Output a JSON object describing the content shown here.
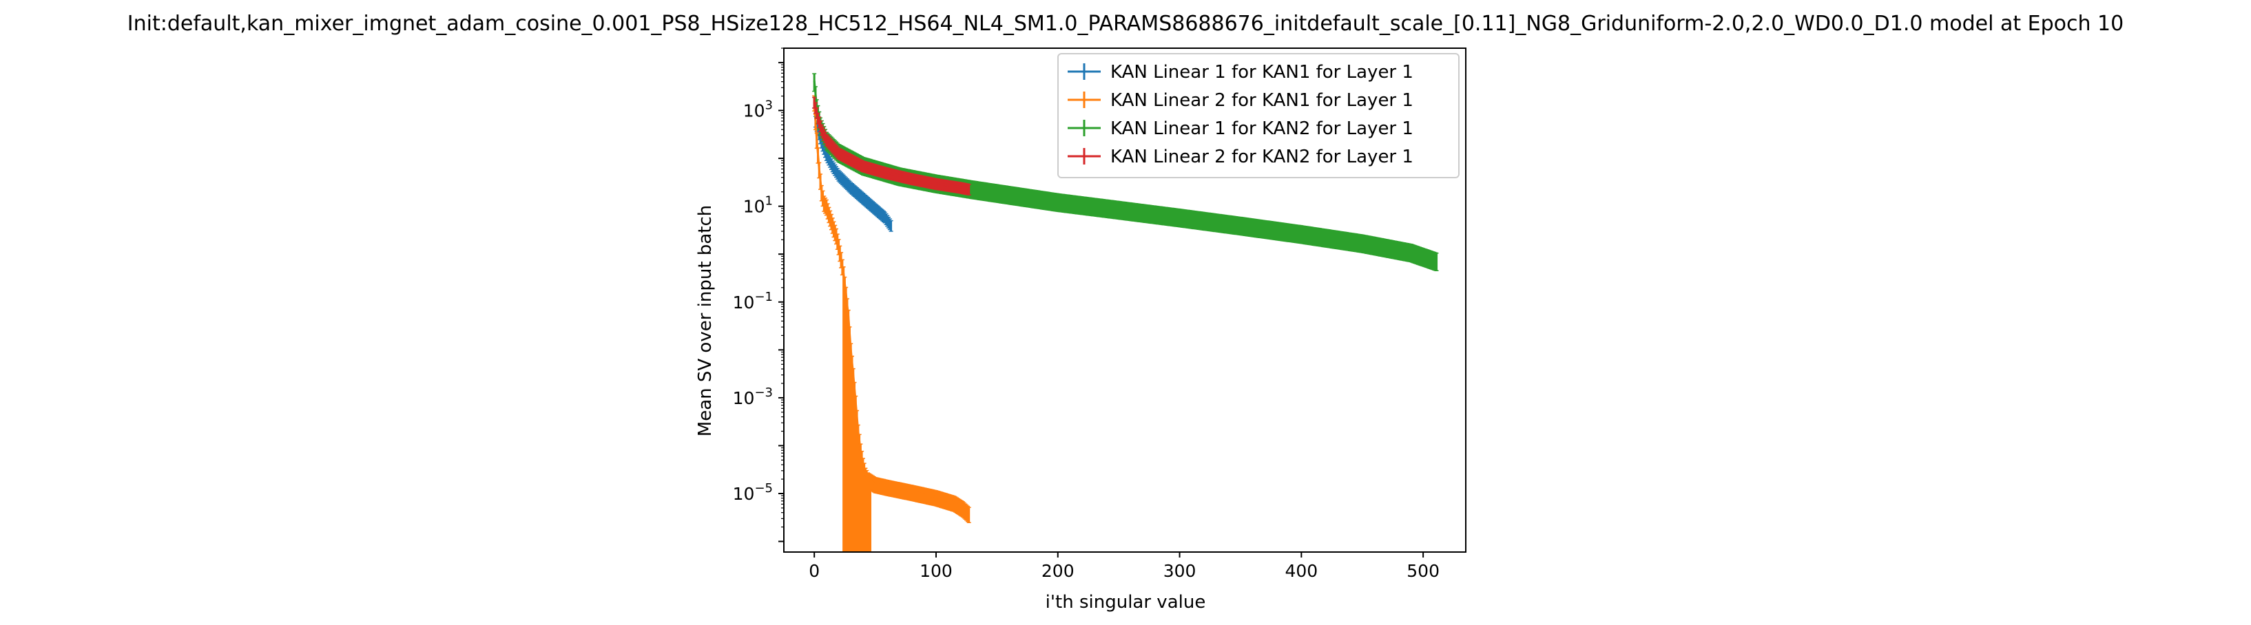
{
  "chart_data": {
    "type": "line",
    "title": "Init:default,kan_mixer_imgnet_adam_cosine_0.001_PS8_HSize128_HC512_HS64_NL4_SM1.0_PARAMS8688676_initdefault_scale_[0.11]_NG8_Griduniform-2.0,2.0_WD0.0_D1.0 model at Epoch 10",
    "xlabel": "i'th singular value",
    "ylabel": "Mean SV over input batch",
    "yscale": "log",
    "xlim": [
      -25,
      535
    ],
    "ylim": [
      6e-07,
      20000
    ],
    "xticks": [
      0,
      100,
      200,
      300,
      400,
      500
    ],
    "yticks": [
      {
        "exp": 3,
        "base": "10",
        "sup": "3"
      },
      {
        "exp": 1,
        "base": "10",
        "sup": "1"
      },
      {
        "exp": -1,
        "base": "10",
        "sup": "−1"
      },
      {
        "exp": -3,
        "base": "10",
        "sup": "−3"
      },
      {
        "exp": -5,
        "base": "10",
        "sup": "−5"
      }
    ],
    "legend_position": "top-right",
    "series": [
      {
        "name": "KAN Linear 1 for KAN1 for Layer 1",
        "color": "#1f77b4",
        "n": 64,
        "points": [
          [
            0,
            1500
          ],
          [
            1,
            600
          ],
          [
            3,
            400
          ],
          [
            6,
            220
          ],
          [
            10,
            120
          ],
          [
            15,
            70
          ],
          [
            20,
            45
          ],
          [
            30,
            25
          ],
          [
            40,
            15
          ],
          [
            50,
            9
          ],
          [
            58,
            6
          ],
          [
            63,
            4
          ]
        ],
        "err_frac": 0.25
      },
      {
        "name": "KAN Linear 2 for KAN1 for Layer 1",
        "color": "#ff7f0e",
        "n": 128,
        "points": [
          [
            0,
            1500
          ],
          [
            2,
            250
          ],
          [
            4,
            60
          ],
          [
            6,
            20
          ],
          [
            8,
            12
          ],
          [
            10,
            10
          ],
          [
            12,
            7
          ],
          [
            14,
            5
          ],
          [
            16,
            3.5
          ],
          [
            18,
            2.5
          ],
          [
            20,
            1.5
          ],
          [
            22,
            0.8
          ],
          [
            24,
            0.4
          ],
          [
            26,
            0.15
          ],
          [
            28,
            0.05
          ],
          [
            30,
            0.01
          ],
          [
            32,
            0.003
          ],
          [
            34,
            0.0008
          ],
          [
            36,
            0.0002
          ],
          [
            38,
            8e-05
          ],
          [
            40,
            4e-05
          ],
          [
            42,
            2.5e-05
          ],
          [
            44,
            2e-05
          ],
          [
            50,
            1.6e-05
          ],
          [
            60,
            1.4e-05
          ],
          [
            80,
            1.1e-05
          ],
          [
            100,
            8.5e-06
          ],
          [
            115,
            6.5e-06
          ],
          [
            122,
            5e-06
          ],
          [
            127,
            3.8e-06
          ]
        ],
        "err_frac": 0.35,
        "spike": {
          "from": 24,
          "to": 46,
          "low": 6e-07
        }
      },
      {
        "name": "KAN Linear 1 for KAN2 for Layer 1",
        "color": "#2ca02c",
        "n": 512,
        "points": [
          [
            0,
            4200
          ],
          [
            2,
            1200
          ],
          [
            5,
            500
          ],
          [
            10,
            250
          ],
          [
            20,
            140
          ],
          [
            40,
            75
          ],
          [
            70,
            45
          ],
          [
            100,
            32
          ],
          [
            130,
            24
          ],
          [
            200,
            13
          ],
          [
            250,
            9
          ],
          [
            300,
            6.2
          ],
          [
            350,
            4.2
          ],
          [
            400,
            2.8
          ],
          [
            450,
            1.8
          ],
          [
            490,
            1.15
          ],
          [
            511,
            0.75
          ]
        ],
        "err_frac": 0.4
      },
      {
        "name": "KAN Linear 2 for KAN2 for Layer 1",
        "color": "#d62728",
        "n": 128,
        "points": [
          [
            0,
            1500
          ],
          [
            3,
            700
          ],
          [
            6,
            400
          ],
          [
            10,
            250
          ],
          [
            20,
            130
          ],
          [
            40,
            70
          ],
          [
            60,
            50
          ],
          [
            80,
            38
          ],
          [
            100,
            30
          ],
          [
            120,
            25
          ],
          [
            127,
            23
          ]
        ],
        "err_frac": 0.25
      }
    ]
  }
}
